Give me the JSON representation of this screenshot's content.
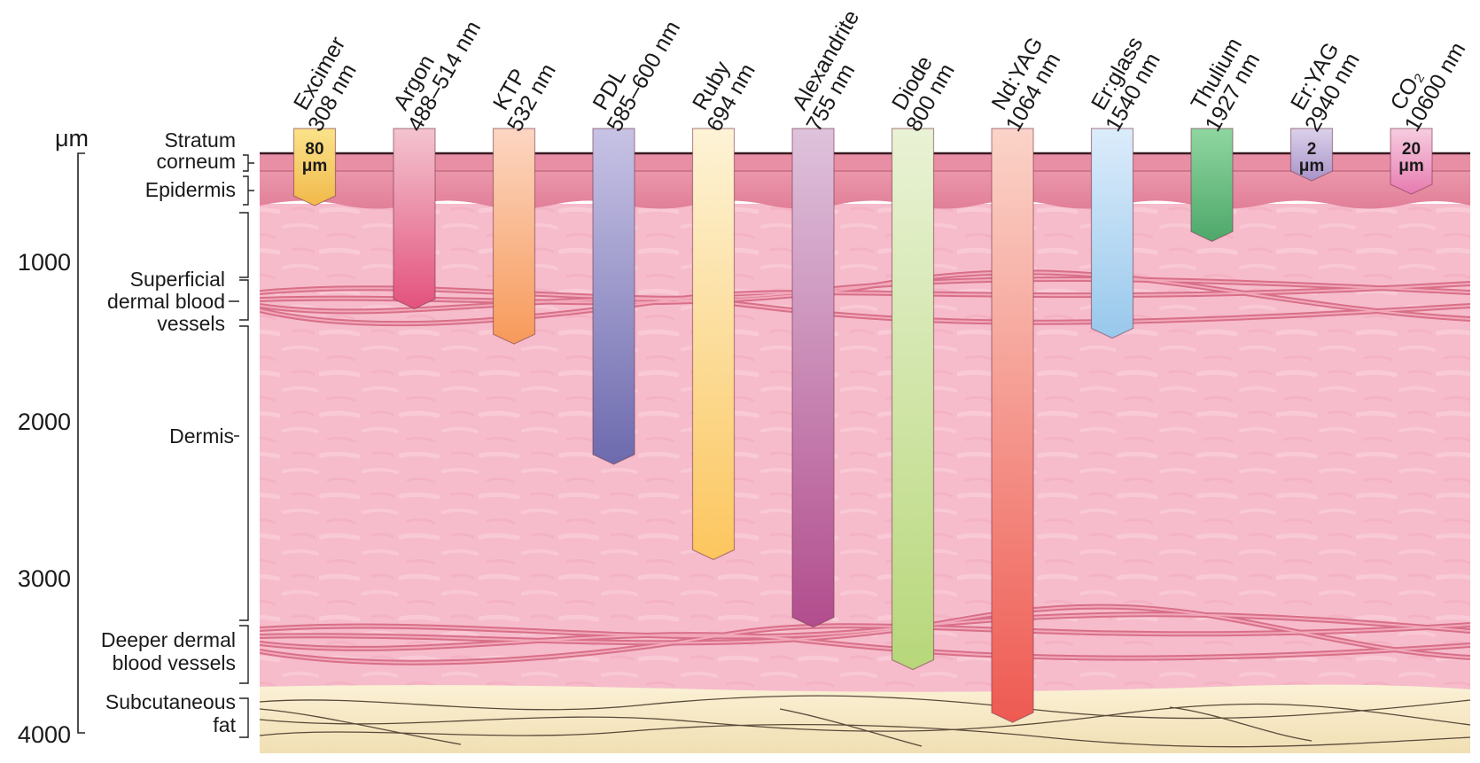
{
  "axis": {
    "unit": "μm",
    "ticks": [
      "1000",
      "2000",
      "3000",
      "4000"
    ]
  },
  "layers": [
    {
      "key": "stratum",
      "lines": [
        "Stratum",
        "corneum"
      ]
    },
    {
      "key": "epidermis",
      "lines": [
        "Epidermis"
      ]
    },
    {
      "key": "superficial",
      "lines": [
        "Superficial",
        "dermal blood",
        "vessels"
      ]
    },
    {
      "key": "dermis",
      "lines": [
        "Dermis"
      ]
    },
    {
      "key": "deeper",
      "lines": [
        "Deeper dermal",
        "blood vessels"
      ]
    },
    {
      "key": "fat",
      "lines": [
        "Subcutaneous",
        "fat"
      ]
    }
  ],
  "lasers": [
    {
      "name": "Excimer",
      "wavelength": "308 nm",
      "depth_um": 80,
      "label_lines": [
        "80",
        "μm"
      ],
      "color_top": "#fbe38a",
      "color_bottom": "#f1b94a"
    },
    {
      "name": "Argon",
      "wavelength": "488–514 nm",
      "depth_um": 1060,
      "color_top": "#f3c4cf",
      "color_bottom": "#e3527d"
    },
    {
      "name": "KTP",
      "wavelength": "532 nm",
      "depth_um": 1300,
      "color_top": "#fcd6c2",
      "color_bottom": "#f79a5a"
    },
    {
      "name": "PDL",
      "wavelength": "585–600 nm",
      "depth_um": 2120,
      "color_top": "#c7c3e5",
      "color_bottom": "#6d6aae"
    },
    {
      "name": "Ruby",
      "wavelength": "694 nm",
      "depth_um": 2770,
      "color_top": "#fdf3d6",
      "color_bottom": "#fcc65e"
    },
    {
      "name": "Alexandrite",
      "wavelength": "755 nm",
      "depth_um": 3230,
      "color_top": "#dec2dc",
      "color_bottom": "#b24d8d"
    },
    {
      "name": "Diode",
      "wavelength": "800 nm",
      "depth_um": 3520,
      "color_top": "#e9f2d5",
      "color_bottom": "#b7d77a"
    },
    {
      "name": "Nd:YAG",
      "wavelength": "1064 nm",
      "depth_um": 3880,
      "color_top": "#fbd3c8",
      "color_bottom": "#ee5a52"
    },
    {
      "name": "Er:glass",
      "wavelength": "1540 nm",
      "depth_um": 1260,
      "color_top": "#dcecfb",
      "color_bottom": "#98c8ec"
    },
    {
      "name": "Thulium",
      "wavelength": "1927 nm",
      "depth_um": 600,
      "color_top": "#8fd6a0",
      "color_bottom": "#4ea86a"
    },
    {
      "name": "Er:YAG",
      "wavelength": "2940 nm",
      "depth_um": 2,
      "label_lines": [
        "2",
        "μm"
      ],
      "color_top": "#dbd1ea",
      "color_bottom": "#a893c8"
    },
    {
      "name": "CO₂",
      "wavelength": "10600 nm",
      "depth_um": 20,
      "label_lines": [
        "20",
        "μm"
      ],
      "color_top": "#f6cde0",
      "color_bottom": "#e77bb0"
    }
  ],
  "colors": {
    "skin": "#f6bccb",
    "epidermis": "#e58aa0",
    "vessel": "#e17e96",
    "fat": "#f8ebcc"
  }
}
